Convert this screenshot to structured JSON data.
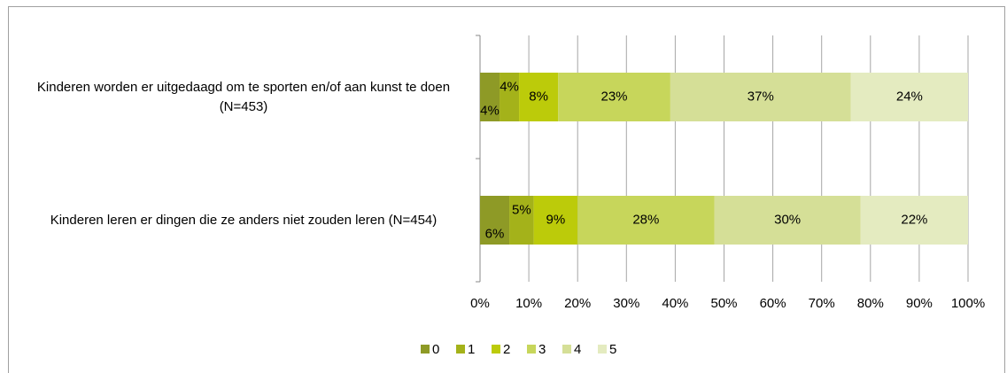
{
  "chart_data": {
    "type": "bar",
    "orientation": "horizontal",
    "stacked": true,
    "categories": [
      "Kinderen worden er uitgedaagd om te sporten en/of aan kunst te doen (N=453)",
      "Kinderen leren er dingen die ze anders niet zouden leren (N=454)"
    ],
    "series": [
      {
        "name": "0",
        "color": "#8e9a26",
        "values": [
          4,
          6
        ],
        "value_labels": [
          "4%",
          "6%"
        ]
      },
      {
        "name": "1",
        "color": "#a4b21a",
        "values": [
          4,
          5
        ],
        "value_labels": [
          "4%",
          "5%"
        ]
      },
      {
        "name": "2",
        "color": "#bccb0a",
        "values": [
          8,
          9
        ],
        "value_labels": [
          "8%",
          "9%"
        ]
      },
      {
        "name": "3",
        "color": "#c7d65b",
        "values": [
          23,
          28
        ],
        "value_labels": [
          "23%",
          "28%"
        ]
      },
      {
        "name": "4",
        "color": "#d5df97",
        "values": [
          37,
          30
        ],
        "value_labels": [
          "37%",
          "30%"
        ]
      },
      {
        "name": "5",
        "color": "#e4ebc0",
        "values": [
          24,
          22
        ],
        "value_labels": [
          "24%",
          "22%"
        ]
      }
    ],
    "xlim": [
      0,
      100
    ],
    "xticks": [
      {
        "value": 0,
        "label": "0%"
      },
      {
        "value": 10,
        "label": "10%"
      },
      {
        "value": 20,
        "label": "20%"
      },
      {
        "value": 30,
        "label": "30%"
      },
      {
        "value": 40,
        "label": "40%"
      },
      {
        "value": 50,
        "label": "50%"
      },
      {
        "value": 60,
        "label": "60%"
      },
      {
        "value": 70,
        "label": "70%"
      },
      {
        "value": 80,
        "label": "80%"
      },
      {
        "value": 90,
        "label": "90%"
      },
      {
        "value": 100,
        "label": "100%"
      }
    ],
    "grid": true,
    "legend": "bottom"
  }
}
